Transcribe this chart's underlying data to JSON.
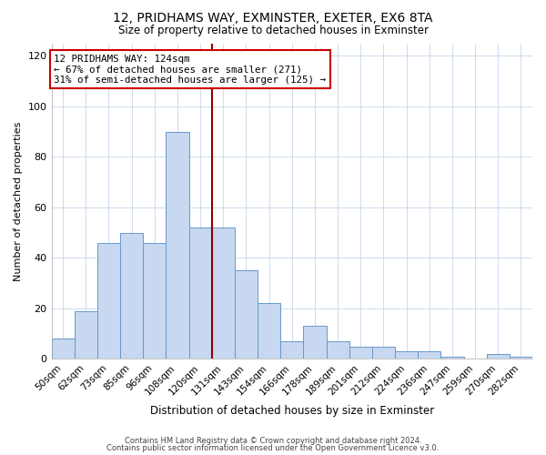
{
  "title": "12, PRIDHAMS WAY, EXMINSTER, EXETER, EX6 8TA",
  "subtitle": "Size of property relative to detached houses in Exminster",
  "xlabel": "Distribution of detached houses by size in Exminster",
  "ylabel": "Number of detached properties",
  "bar_color": "#c8d8f0",
  "bar_edge_color": "#6699cc",
  "categories": [
    "50sqm",
    "62sqm",
    "73sqm",
    "85sqm",
    "96sqm",
    "108sqm",
    "120sqm",
    "131sqm",
    "143sqm",
    "154sqm",
    "166sqm",
    "178sqm",
    "189sqm",
    "201sqm",
    "212sqm",
    "224sqm",
    "236sqm",
    "247sqm",
    "259sqm",
    "270sqm",
    "282sqm"
  ],
  "values": [
    8,
    19,
    46,
    50,
    46,
    90,
    52,
    52,
    35,
    22,
    7,
    13,
    7,
    5,
    5,
    3,
    3,
    1,
    0,
    2,
    1
  ],
  "vline_x_index": 6,
  "vline_color": "#8b0000",
  "annotation_text": "12 PRIDHAMS WAY: 124sqm\n← 67% of detached houses are smaller (271)\n31% of semi-detached houses are larger (125) →",
  "annotation_box_edgecolor": "#cc0000",
  "ylim": [
    0,
    125
  ],
  "yticks": [
    0,
    20,
    40,
    60,
    80,
    100,
    120
  ],
  "background_color": "#ffffff",
  "grid_color": "#d0ddf0",
  "footer_line1": "Contains HM Land Registry data © Crown copyright and database right 2024.",
  "footer_line2": "Contains public sector information licensed under the Open Government Licence v3.0."
}
